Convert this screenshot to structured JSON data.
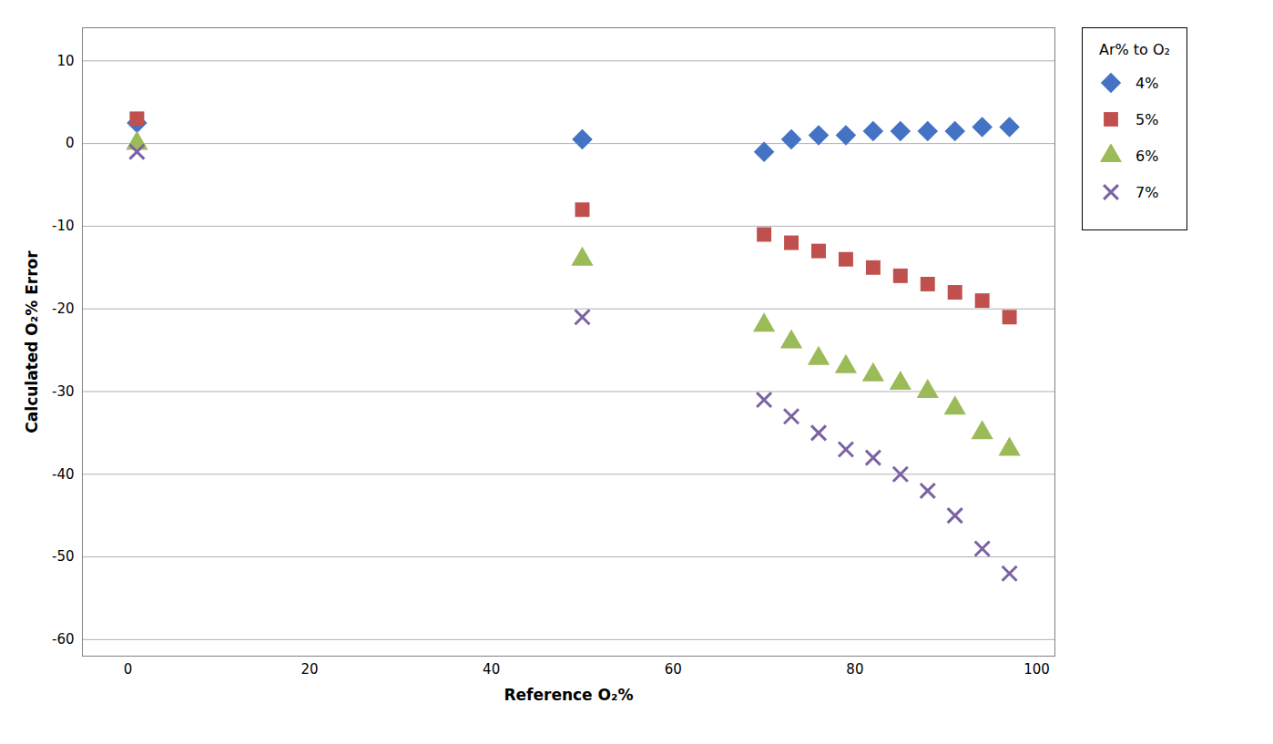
{
  "chart_data": {
    "type": "scatter",
    "xlabel": "Reference O₂%",
    "ylabel": "Calculated O₂% Error",
    "xlim": [
      -5,
      102
    ],
    "ylim": [
      -62,
      14
    ],
    "xticks": [
      0,
      20,
      40,
      60,
      80,
      100
    ],
    "yticks": [
      -60,
      -50,
      -40,
      -30,
      -20,
      -10,
      0,
      10
    ],
    "grid": "y",
    "legend": "right",
    "legend_title": "Ar% to O₂",
    "series": [
      {
        "name": "4%",
        "color": "#4472C4",
        "marker": "diamond",
        "x": [
          1,
          50,
          70,
          73,
          76,
          79,
          82,
          85,
          88,
          91,
          94,
          97
        ],
        "values": [
          2.5,
          0.5,
          -1,
          0.5,
          1,
          1,
          1.5,
          1.5,
          1.5,
          1.5,
          2,
          2
        ]
      },
      {
        "name": "5%",
        "color": "#C0504D",
        "marker": "square",
        "x": [
          1,
          50,
          70,
          73,
          76,
          79,
          82,
          85,
          88,
          91,
          94,
          97
        ],
        "values": [
          3,
          -8,
          -11,
          -12,
          -13,
          -14,
          -15,
          -16,
          -17,
          -18,
          -19,
          -21
        ]
      },
      {
        "name": "6%",
        "color": "#9BBB59",
        "marker": "triangle",
        "x": [
          1,
          50,
          70,
          73,
          76,
          79,
          82,
          85,
          88,
          91,
          94,
          97
        ],
        "values": [
          0,
          -14,
          -22,
          -24,
          -26,
          -27,
          -28,
          -29,
          -30,
          -32,
          -35,
          -37
        ]
      },
      {
        "name": "7%",
        "color": "#7B62A3",
        "marker": "x",
        "x": [
          1,
          50,
          70,
          73,
          76,
          79,
          82,
          85,
          88,
          91,
          94,
          97
        ],
        "values": [
          -1,
          -21,
          -31,
          -33,
          -35,
          -37,
          -38,
          -40,
          -42,
          -45,
          -49,
          -52
        ]
      }
    ]
  }
}
